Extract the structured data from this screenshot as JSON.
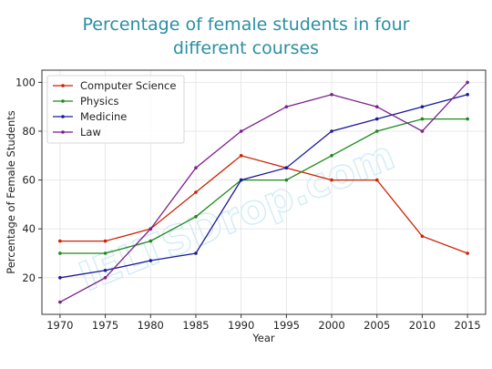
{
  "chart_data": {
    "type": "line",
    "title": "Percentage of female students in four\ndifferent courses",
    "xlabel": "Year",
    "ylabel": "Percentage of Female Students",
    "x": [
      1970,
      1975,
      1980,
      1985,
      1990,
      1995,
      2000,
      2005,
      2010,
      2015
    ],
    "xlim": [
      1968,
      2017
    ],
    "ylim": [
      5,
      105
    ],
    "yticks": [
      20,
      40,
      60,
      80,
      100
    ],
    "grid": true,
    "legend_position": "top-left",
    "watermark": "IELTSDrop.com",
    "series": [
      {
        "name": "Computer Science",
        "color": "#cc2200",
        "values": [
          35,
          35,
          40,
          55,
          70,
          65,
          60,
          60,
          37,
          30
        ]
      },
      {
        "name": "Physics",
        "color": "#1e8a1e",
        "values": [
          30,
          30,
          35,
          45,
          60,
          60,
          70,
          80,
          85,
          85
        ]
      },
      {
        "name": "Medicine",
        "color": "#1a1a9a",
        "values": [
          20,
          23,
          27,
          30,
          60,
          65,
          80,
          85,
          90,
          95
        ]
      },
      {
        "name": "Law",
        "color": "#7b1f8c",
        "values": [
          10,
          20,
          40,
          65,
          80,
          90,
          95,
          90,
          80,
          100
        ]
      }
    ]
  }
}
